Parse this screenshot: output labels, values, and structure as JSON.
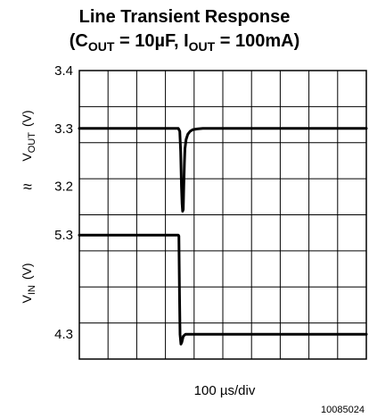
{
  "chart_data": {
    "type": "line",
    "title": {
      "line1": "Line Transient Response",
      "line2_open": "(C",
      "line2_sub1": "OUT",
      "line2_mid": " = 10µF, I",
      "line2_sub2": "OUT",
      "line2_close": " = 100mA)"
    },
    "xlabel": "100 µs/div",
    "x_units": "µs",
    "xlim": [
      0,
      1000
    ],
    "x_divisions": 10,
    "y_divisions": 8,
    "grid": true,
    "figure_id": "10085024",
    "break_symbol": "≈",
    "panels": [
      {
        "name": "VOUT",
        "ylabel_main": "V",
        "ylabel_sub": "OUT",
        "ylabel_unit": "(V)",
        "ylim": [
          3.15,
          3.4
        ],
        "ticks": [
          3.4,
          3.3,
          3.2
        ],
        "tick_labels": [
          "3.4",
          "3.3",
          "3.2"
        ],
        "series": {
          "x": [
            0,
            345,
            350,
            353,
            356,
            358,
            360,
            362,
            364,
            366,
            368,
            372,
            378,
            386,
            396,
            410,
            430,
            460,
            1000
          ],
          "y": [
            3.3,
            3.3,
            3.295,
            3.26,
            3.2,
            3.17,
            3.157,
            3.16,
            3.2,
            3.24,
            3.265,
            3.281,
            3.29,
            3.295,
            3.298,
            3.299,
            3.3,
            3.3,
            3.3
          ]
        }
      },
      {
        "name": "VIN",
        "ylabel_main": "V",
        "ylabel_sub": "IN",
        "ylabel_unit": "(V)",
        "ylim": [
          4.05,
          5.5
        ],
        "ticks": [
          5.3,
          4.3
        ],
        "tick_labels": [
          "5.3",
          "4.3"
        ],
        "series": {
          "x": [
            0,
            345,
            347,
            349,
            351,
            354,
            357,
            362,
            370,
            380,
            1000
          ],
          "y": [
            5.3,
            5.3,
            5.29,
            4.7,
            4.3,
            4.2,
            4.22,
            4.28,
            4.3,
            4.3,
            4.3
          ]
        }
      }
    ]
  },
  "colors": {
    "line": "#000000",
    "grid": "#000000",
    "background": "#ffffff"
  }
}
